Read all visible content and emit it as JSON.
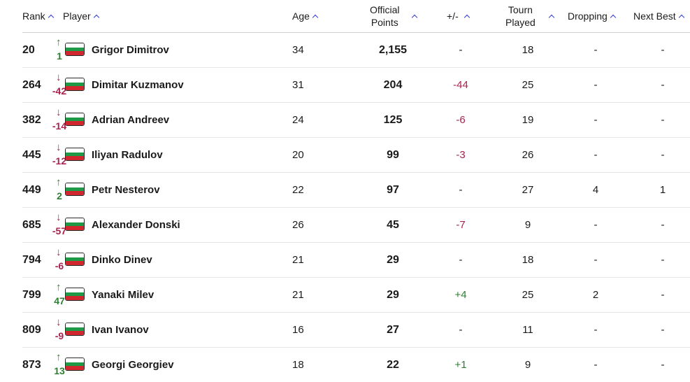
{
  "header": {
    "rank": "Rank",
    "player": "Player",
    "age": "Age",
    "points_l1": "Official",
    "points_l2": "Points",
    "plus_minus": "+/-",
    "tourn_l1": "Tourn",
    "tourn_l2": "Played",
    "dropping": "Dropping",
    "next_best": "Next Best"
  },
  "colors": {
    "up": "#2f7d32",
    "down": "#a8234d",
    "sort_icon": "#2f3bd9"
  },
  "rows": [
    {
      "rank": "20",
      "dir": "up",
      "arrow": "↑",
      "delta": "1",
      "player": "Grigor Dimitrov",
      "age": "34",
      "points": "2,155",
      "pm": "-",
      "pm_class": "",
      "played": "18",
      "dropping": "-",
      "next_best": "-"
    },
    {
      "rank": "264",
      "dir": "down",
      "arrow": "↓",
      "delta": "-42",
      "player": "Dimitar Kuzmanov",
      "age": "31",
      "points": "204",
      "pm": "-44",
      "pm_class": "neg",
      "played": "25",
      "dropping": "-",
      "next_best": "-"
    },
    {
      "rank": "382",
      "dir": "down",
      "arrow": "↓",
      "delta": "-14",
      "player": "Adrian Andreev",
      "age": "24",
      "points": "125",
      "pm": "-6",
      "pm_class": "neg",
      "played": "19",
      "dropping": "-",
      "next_best": "-"
    },
    {
      "rank": "445",
      "dir": "down",
      "arrow": "↓",
      "delta": "-12",
      "player": "Iliyan Radulov",
      "age": "20",
      "points": "99",
      "pm": "-3",
      "pm_class": "neg",
      "played": "26",
      "dropping": "-",
      "next_best": "-"
    },
    {
      "rank": "449",
      "dir": "up",
      "arrow": "↑",
      "delta": "2",
      "player": "Petr Nesterov",
      "age": "22",
      "points": "97",
      "pm": "-",
      "pm_class": "",
      "played": "27",
      "dropping": "4",
      "next_best": "1"
    },
    {
      "rank": "685",
      "dir": "down",
      "arrow": "↓",
      "delta": "-57",
      "player": "Alexander Donski",
      "age": "26",
      "points": "45",
      "pm": "-7",
      "pm_class": "neg",
      "played": "9",
      "dropping": "-",
      "next_best": "-"
    },
    {
      "rank": "794",
      "dir": "down",
      "arrow": "↓",
      "delta": "-6",
      "player": "Dinko Dinev",
      "age": "21",
      "points": "29",
      "pm": "-",
      "pm_class": "",
      "played": "18",
      "dropping": "-",
      "next_best": "-"
    },
    {
      "rank": "799",
      "dir": "up",
      "arrow": "↑",
      "delta": "47",
      "player": "Yanaki Milev",
      "age": "21",
      "points": "29",
      "pm": "+4",
      "pm_class": "pos",
      "played": "25",
      "dropping": "2",
      "next_best": "-"
    },
    {
      "rank": "809",
      "dir": "down",
      "arrow": "↓",
      "delta": "-9",
      "player": "Ivan Ivanov",
      "age": "16",
      "points": "27",
      "pm": "-",
      "pm_class": "",
      "played": "11",
      "dropping": "-",
      "next_best": "-"
    },
    {
      "rank": "873",
      "dir": "up",
      "arrow": "↑",
      "delta": "13",
      "player": "Georgi Georgiev",
      "age": "18",
      "points": "22",
      "pm": "+1",
      "pm_class": "pos",
      "played": "9",
      "dropping": "-",
      "next_best": "-"
    }
  ]
}
